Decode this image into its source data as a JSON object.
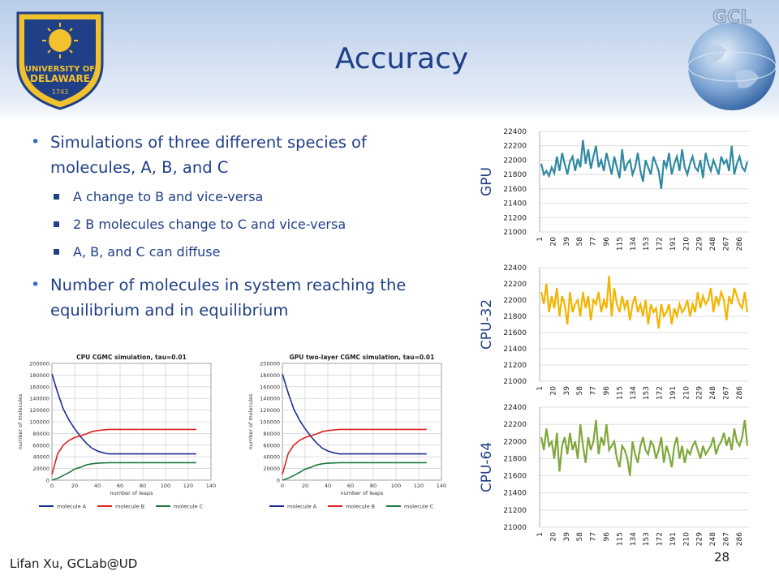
{
  "slide": {
    "title": "Accuracy",
    "footer": "Lifan Xu, GCLab@UD",
    "page_number": "28"
  },
  "logos": {
    "ud": {
      "icon": "university-of-delaware-seal-icon",
      "line1": "UNIVERSITY OF",
      "line2": "DELAWARE",
      "year": "1743",
      "colors": {
        "blue": "#1f3f86",
        "gold": "#f2c12e"
      }
    },
    "gcl": {
      "icon": "gcl-globe-logo-icon",
      "text": "GCL"
    }
  },
  "bullets": [
    {
      "text": "Simulations of three different species of molecules, A, B, and C",
      "sub": [
        "A change to B and vice-versa",
        "2 B molecules change to C and vice-versa",
        "A, B, and C can diffuse"
      ]
    },
    {
      "text": "Number of molecules in system reaching the equilibrium and in equilibrium",
      "sub": []
    }
  ],
  "chart_data": [
    {
      "type": "line",
      "title": "CPU CGMC simulation, tau=0.01",
      "xlabel": "number of leaps",
      "ylabel": "number of molecules",
      "xlim": [
        0,
        140
      ],
      "ylim": [
        0,
        200000
      ],
      "xticks": [
        0,
        20,
        40,
        60,
        80,
        100,
        120,
        140
      ],
      "yticks": [
        0,
        20000,
        40000,
        60000,
        80000,
        100000,
        120000,
        140000,
        160000,
        180000,
        200000
      ],
      "grid": true,
      "legend": "bottom",
      "series": [
        {
          "name": "molecule A",
          "color": "#1c2e8f",
          "x": [
            0,
            5,
            10,
            15,
            20,
            25,
            30,
            35,
            40,
            45,
            50,
            60,
            80,
            100,
            127
          ],
          "values": [
            182000,
            150000,
            122000,
            103000,
            88000,
            75000,
            64000,
            55000,
            50000,
            47000,
            45000,
            45000,
            45000,
            45000,
            45000
          ]
        },
        {
          "name": "molecule B",
          "color": "#e02020",
          "x": [
            0,
            5,
            10,
            15,
            20,
            25,
            30,
            35,
            40,
            50,
            60,
            80,
            100,
            127
          ],
          "values": [
            10000,
            45000,
            60000,
            68000,
            73000,
            76000,
            79000,
            83000,
            85000,
            87000,
            87000,
            87000,
            87000,
            87000
          ]
        },
        {
          "name": "molecule C",
          "color": "#1b7a3a",
          "x": [
            0,
            5,
            10,
            15,
            20,
            25,
            30,
            35,
            40,
            50,
            60,
            80,
            100,
            127
          ],
          "values": [
            0,
            3000,
            8000,
            13000,
            19000,
            22000,
            26000,
            28000,
            29000,
            30000,
            30000,
            30000,
            30000,
            30000
          ]
        }
      ]
    },
    {
      "type": "line",
      "title": "GPU two-layer  CGMC simulation, tau=0.01",
      "xlabel": "number of leaps",
      "ylabel": "number of molecules",
      "xlim": [
        0,
        140
      ],
      "ylim": [
        0,
        200000
      ],
      "xticks": [
        0,
        20,
        40,
        60,
        80,
        100,
        120,
        140
      ],
      "yticks": [
        0,
        20000,
        40000,
        60000,
        80000,
        100000,
        120000,
        140000,
        160000,
        180000,
        200000
      ],
      "grid": true,
      "legend": "bottom",
      "series": [
        {
          "name": "molecule A",
          "color": "#1c2e8f",
          "x": [
            0,
            5,
            10,
            15,
            20,
            25,
            30,
            35,
            40,
            45,
            50,
            60,
            80,
            100,
            127
          ],
          "values": [
            182000,
            150000,
            122000,
            103000,
            88000,
            75000,
            64000,
            55000,
            50000,
            47000,
            45000,
            45000,
            45000,
            45000,
            45000
          ]
        },
        {
          "name": "molecule B",
          "color": "#e02020",
          "x": [
            0,
            5,
            10,
            15,
            20,
            25,
            30,
            35,
            40,
            50,
            60,
            80,
            100,
            127
          ],
          "values": [
            10000,
            45000,
            60000,
            68000,
            73000,
            76000,
            79000,
            83000,
            85000,
            87000,
            87000,
            87000,
            87000,
            87000
          ]
        },
        {
          "name": "molecule C",
          "color": "#1b7a3a",
          "x": [
            0,
            5,
            10,
            15,
            20,
            25,
            30,
            35,
            40,
            50,
            60,
            80,
            100,
            127
          ],
          "values": [
            0,
            3000,
            8000,
            13000,
            19000,
            22000,
            26000,
            28000,
            29000,
            30000,
            30000,
            30000,
            30000,
            30000
          ]
        }
      ]
    },
    {
      "type": "line",
      "label": "GPU",
      "color": "#2f8aa1",
      "ylim": [
        21000,
        22400
      ],
      "yticks": [
        21000,
        21200,
        21400,
        21600,
        21800,
        22000,
        22200,
        22400
      ],
      "xticks": [
        "1",
        "20",
        "39",
        "58",
        "77",
        "96",
        "115",
        "134",
        "153",
        "172",
        "191",
        "210",
        "229",
        "248",
        "267",
        "286"
      ],
      "xlim": [
        1,
        300
      ],
      "grid": true,
      "series": [
        {
          "values": [
            21950,
            21800,
            21850,
            21780,
            21900,
            21820,
            22050,
            21850,
            22100,
            21950,
            21800,
            21980,
            22050,
            21850,
            22020,
            21900,
            22280,
            21950,
            22150,
            21880,
            22050,
            22200,
            21900,
            22000,
            21850,
            22100,
            21950,
            21800,
            22050,
            21900,
            21750,
            22150,
            21850,
            21950,
            22000,
            21800,
            21900,
            22100,
            21850,
            21700,
            22000,
            21900,
            21800,
            22050,
            21950,
            21850,
            21600,
            22000,
            21900,
            22100,
            21800,
            21950,
            22050,
            21850,
            22150,
            21900,
            21800,
            21950,
            22050,
            21900,
            21850,
            22000,
            21750,
            22100,
            21950,
            21850,
            22000,
            21900,
            21800,
            22050,
            21950,
            22000,
            21850,
            22200,
            21800,
            21950,
            22050,
            21900,
            21850,
            21980
          ]
        }
      ]
    },
    {
      "type": "line",
      "label": "CPU-32",
      "color": "#f4b400",
      "ylim": [
        21000,
        22400
      ],
      "yticks": [
        21000,
        21200,
        21400,
        21600,
        21800,
        22000,
        22200,
        22400
      ],
      "xticks": [
        "1",
        "20",
        "39",
        "58",
        "77",
        "96",
        "115",
        "134",
        "153",
        "172",
        "191",
        "210",
        "229",
        "248",
        "267",
        "286"
      ],
      "xlim": [
        1,
        300
      ],
      "grid": true,
      "series": [
        {
          "values": [
            22100,
            21950,
            22200,
            21850,
            22050,
            21900,
            22150,
            21800,
            22050,
            21950,
            21700,
            22100,
            21850,
            21950,
            22000,
            21800,
            22100,
            21900,
            22050,
            21750,
            22000,
            21950,
            22100,
            21850,
            22000,
            21900,
            22300,
            21800,
            22150,
            21950,
            21850,
            22050,
            21900,
            22000,
            21750,
            21950,
            22050,
            21850,
            21950,
            21800,
            22000,
            21700,
            21950,
            21850,
            21900,
            21650,
            21950,
            21800,
            21850,
            21950,
            21700,
            21900,
            21800,
            21950,
            21850,
            21900,
            22000,
            21800,
            21950,
            21850,
            22100,
            21900,
            22050,
            21950,
            22000,
            22150,
            21850,
            22050,
            21950,
            22100,
            22000,
            21750,
            22050,
            21950,
            22150,
            22050,
            21950,
            21900,
            22100,
            21850
          ]
        }
      ]
    },
    {
      "type": "line",
      "label": "CPU-64",
      "color": "#7fa83a",
      "ylim": [
        21000,
        22400
      ],
      "yticks": [
        21000,
        21200,
        21400,
        21600,
        21800,
        22000,
        22200,
        22400
      ],
      "xticks": [
        "1",
        "20",
        "39",
        "58",
        "77",
        "96",
        "115",
        "134",
        "153",
        "172",
        "191",
        "210",
        "229",
        "248",
        "267",
        "286"
      ],
      "xlim": [
        1,
        300
      ],
      "grid": true,
      "series": [
        {
          "values": [
            22050,
            21900,
            22150,
            21950,
            22000,
            21800,
            22100,
            21650,
            21950,
            22050,
            21850,
            22100,
            21900,
            22000,
            21800,
            22200,
            21950,
            21750,
            22050,
            21900,
            22000,
            22250,
            21850,
            22050,
            21950,
            22200,
            21900,
            21950,
            22000,
            21800,
            21700,
            21950,
            21900,
            21800,
            21600,
            22000,
            21850,
            21750,
            21950,
            22050,
            21900,
            21850,
            22000,
            21950,
            21800,
            21900,
            22050,
            21750,
            21950,
            21850,
            21700,
            21950,
            22050,
            21800,
            21950,
            21750,
            21900,
            21850,
            21950,
            22000,
            21900,
            21800,
            21950,
            21850,
            21900,
            21950,
            22050,
            21850,
            21950,
            22000,
            22100,
            21950,
            22050,
            21900,
            22150,
            22000,
            21950,
            22050,
            22250,
            21950
          ]
        }
      ]
    }
  ]
}
